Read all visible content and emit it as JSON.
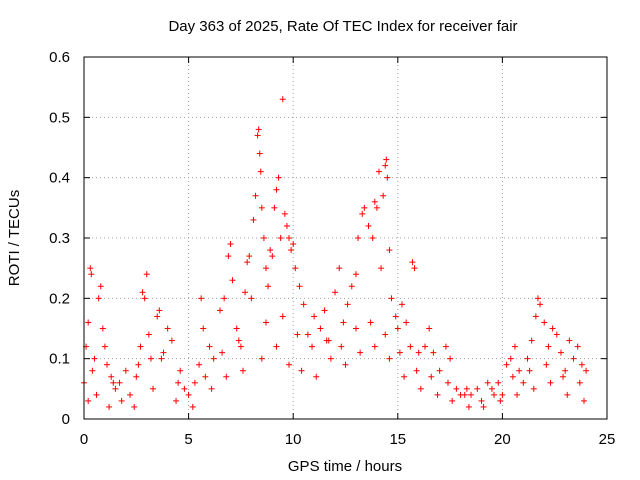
{
  "chart_data": {
    "type": "scatter",
    "title": "Day 363 of 2025, Rate Of TEC Index for receiver fair",
    "xlabel": "GPS time / hours",
    "ylabel": "ROTI / TECUs",
    "xlim": [
      0,
      25
    ],
    "ylim": [
      0,
      0.6
    ],
    "x_ticks": [
      "0",
      "5",
      "10",
      "15",
      "20",
      "25"
    ],
    "y_ticks": [
      "0",
      "0.1",
      "0.2",
      "0.3",
      "0.4",
      "0.5",
      "0.6"
    ],
    "x_tick_values": [
      0,
      5,
      10,
      15,
      20,
      25
    ],
    "y_tick_values": [
      0,
      0.1,
      0.2,
      0.3,
      0.4,
      0.5,
      0.6
    ],
    "grid": true,
    "marker": "+",
    "color": "#ff0000",
    "series": [
      {
        "points": [
          [
            0.0,
            0.06
          ],
          [
            0.1,
            0.12
          ],
          [
            0.2,
            0.16
          ],
          [
            0.3,
            0.25
          ],
          [
            0.35,
            0.24
          ],
          [
            0.5,
            0.1
          ],
          [
            0.7,
            0.2
          ],
          [
            0.8,
            0.22
          ],
          [
            0.9,
            0.15
          ],
          [
            1.0,
            0.12
          ],
          [
            1.1,
            0.09
          ],
          [
            1.3,
            0.07
          ],
          [
            1.5,
            0.05
          ],
          [
            1.7,
            0.06
          ],
          [
            2.0,
            0.08
          ],
          [
            2.2,
            0.04
          ],
          [
            2.5,
            0.07
          ],
          [
            2.7,
            0.12
          ],
          [
            2.8,
            0.21
          ],
          [
            2.9,
            0.2
          ],
          [
            3.0,
            0.24
          ],
          [
            3.1,
            0.14
          ],
          [
            3.2,
            0.1
          ],
          [
            3.5,
            0.17
          ],
          [
            3.6,
            0.18
          ],
          [
            3.8,
            0.11
          ],
          [
            4.0,
            0.15
          ],
          [
            4.2,
            0.13
          ],
          [
            4.5,
            0.06
          ],
          [
            4.8,
            0.05
          ],
          [
            5.0,
            0.04
          ],
          [
            5.3,
            0.06
          ],
          [
            5.5,
            0.09
          ],
          [
            5.6,
            0.2
          ],
          [
            5.7,
            0.15
          ],
          [
            6.0,
            0.12
          ],
          [
            6.2,
            0.1
          ],
          [
            6.5,
            0.18
          ],
          [
            6.7,
            0.2
          ],
          [
            6.9,
            0.27
          ],
          [
            7.0,
            0.29
          ],
          [
            7.1,
            0.23
          ],
          [
            7.3,
            0.15
          ],
          [
            7.5,
            0.12
          ],
          [
            7.7,
            0.21
          ],
          [
            7.8,
            0.26
          ],
          [
            7.9,
            0.27
          ],
          [
            8.0,
            0.2
          ],
          [
            8.1,
            0.33
          ],
          [
            8.2,
            0.37
          ],
          [
            8.3,
            0.47
          ],
          [
            8.35,
            0.48
          ],
          [
            8.4,
            0.44
          ],
          [
            8.45,
            0.41
          ],
          [
            8.5,
            0.35
          ],
          [
            8.6,
            0.3
          ],
          [
            8.7,
            0.25
          ],
          [
            8.8,
            0.22
          ],
          [
            8.9,
            0.28
          ],
          [
            9.0,
            0.27
          ],
          [
            9.1,
            0.35
          ],
          [
            9.2,
            0.38
          ],
          [
            9.3,
            0.4
          ],
          [
            9.4,
            0.3
          ],
          [
            9.5,
            0.53
          ],
          [
            9.6,
            0.34
          ],
          [
            9.7,
            0.32
          ],
          [
            9.8,
            0.3
          ],
          [
            9.9,
            0.28
          ],
          [
            10.0,
            0.29
          ],
          [
            10.1,
            0.25
          ],
          [
            10.3,
            0.22
          ],
          [
            10.5,
            0.19
          ],
          [
            10.7,
            0.14
          ],
          [
            11.0,
            0.17
          ],
          [
            11.3,
            0.15
          ],
          [
            11.5,
            0.18
          ],
          [
            11.7,
            0.13
          ],
          [
            12.0,
            0.21
          ],
          [
            12.2,
            0.25
          ],
          [
            12.4,
            0.16
          ],
          [
            12.6,
            0.19
          ],
          [
            12.8,
            0.22
          ],
          [
            13.0,
            0.24
          ],
          [
            13.1,
            0.3
          ],
          [
            13.3,
            0.34
          ],
          [
            13.4,
            0.35
          ],
          [
            13.6,
            0.32
          ],
          [
            13.8,
            0.3
          ],
          [
            13.9,
            0.36
          ],
          [
            14.0,
            0.35
          ],
          [
            14.1,
            0.41
          ],
          [
            14.2,
            0.25
          ],
          [
            14.3,
            0.37
          ],
          [
            14.4,
            0.42
          ],
          [
            14.45,
            0.43
          ],
          [
            14.5,
            0.4
          ],
          [
            14.6,
            0.28
          ],
          [
            14.7,
            0.2
          ],
          [
            14.9,
            0.17
          ],
          [
            15.0,
            0.15
          ],
          [
            15.2,
            0.19
          ],
          [
            15.4,
            0.16
          ],
          [
            15.6,
            0.12
          ],
          [
            15.7,
            0.26
          ],
          [
            15.8,
            0.25
          ],
          [
            16.0,
            0.11
          ],
          [
            16.3,
            0.12
          ],
          [
            16.5,
            0.15
          ],
          [
            16.7,
            0.11
          ],
          [
            17.0,
            0.08
          ],
          [
            17.3,
            0.12
          ],
          [
            17.5,
            0.1
          ],
          [
            17.8,
            0.05
          ],
          [
            18.0,
            0.04
          ],
          [
            18.3,
            0.05
          ],
          [
            18.5,
            0.04
          ],
          [
            18.8,
            0.05
          ],
          [
            19.0,
            0.03
          ],
          [
            19.3,
            0.06
          ],
          [
            19.5,
            0.05
          ],
          [
            19.8,
            0.06
          ],
          [
            20.0,
            0.04
          ],
          [
            20.2,
            0.09
          ],
          [
            20.4,
            0.1
          ],
          [
            20.6,
            0.12
          ],
          [
            20.8,
            0.08
          ],
          [
            21.0,
            0.06
          ],
          [
            21.2,
            0.1
          ],
          [
            21.4,
            0.13
          ],
          [
            21.6,
            0.17
          ],
          [
            21.7,
            0.2
          ],
          [
            21.8,
            0.19
          ],
          [
            22.0,
            0.16
          ],
          [
            22.2,
            0.12
          ],
          [
            22.4,
            0.15
          ],
          [
            22.6,
            0.14
          ],
          [
            22.8,
            0.11
          ],
          [
            23.0,
            0.08
          ],
          [
            23.2,
            0.13
          ],
          [
            23.4,
            0.1
          ],
          [
            23.6,
            0.12
          ],
          [
            23.8,
            0.09
          ],
          [
            24.0,
            0.08
          ],
          [
            0.2,
            0.03
          ],
          [
            0.6,
            0.04
          ],
          [
            1.2,
            0.02
          ],
          [
            1.8,
            0.03
          ],
          [
            2.4,
            0.02
          ],
          [
            3.3,
            0.05
          ],
          [
            4.4,
            0.03
          ],
          [
            5.2,
            0.02
          ],
          [
            6.1,
            0.05
          ],
          [
            6.8,
            0.07
          ],
          [
            7.6,
            0.08
          ],
          [
            8.5,
            0.1
          ],
          [
            9.2,
            0.12
          ],
          [
            9.8,
            0.09
          ],
          [
            10.4,
            0.08
          ],
          [
            11.1,
            0.07
          ],
          [
            11.8,
            0.1
          ],
          [
            12.5,
            0.09
          ],
          [
            13.2,
            0.11
          ],
          [
            13.9,
            0.12
          ],
          [
            14.6,
            0.1
          ],
          [
            15.3,
            0.07
          ],
          [
            16.1,
            0.05
          ],
          [
            16.9,
            0.04
          ],
          [
            17.6,
            0.03
          ],
          [
            18.4,
            0.02
          ],
          [
            19.1,
            0.02
          ],
          [
            19.9,
            0.03
          ],
          [
            20.7,
            0.04
          ],
          [
            21.5,
            0.05
          ],
          [
            22.3,
            0.06
          ],
          [
            23.1,
            0.04
          ],
          [
            23.9,
            0.03
          ],
          [
            0.4,
            0.08
          ],
          [
            1.4,
            0.06
          ],
          [
            2.6,
            0.09
          ],
          [
            3.7,
            0.1
          ],
          [
            4.6,
            0.08
          ],
          [
            5.8,
            0.07
          ],
          [
            6.6,
            0.11
          ],
          [
            7.4,
            0.13
          ],
          [
            8.7,
            0.16
          ],
          [
            9.5,
            0.17
          ],
          [
            10.2,
            0.14
          ],
          [
            10.9,
            0.12
          ],
          [
            11.6,
            0.13
          ],
          [
            12.3,
            0.12
          ],
          [
            13.0,
            0.15
          ],
          [
            13.7,
            0.16
          ],
          [
            14.4,
            0.14
          ],
          [
            15.1,
            0.11
          ],
          [
            15.9,
            0.08
          ],
          [
            16.6,
            0.07
          ],
          [
            17.4,
            0.06
          ],
          [
            18.2,
            0.04
          ],
          [
            19.6,
            0.04
          ],
          [
            20.5,
            0.07
          ],
          [
            21.3,
            0.08
          ],
          [
            22.1,
            0.09
          ],
          [
            22.9,
            0.07
          ],
          [
            23.7,
            0.06
          ]
        ]
      }
    ]
  }
}
